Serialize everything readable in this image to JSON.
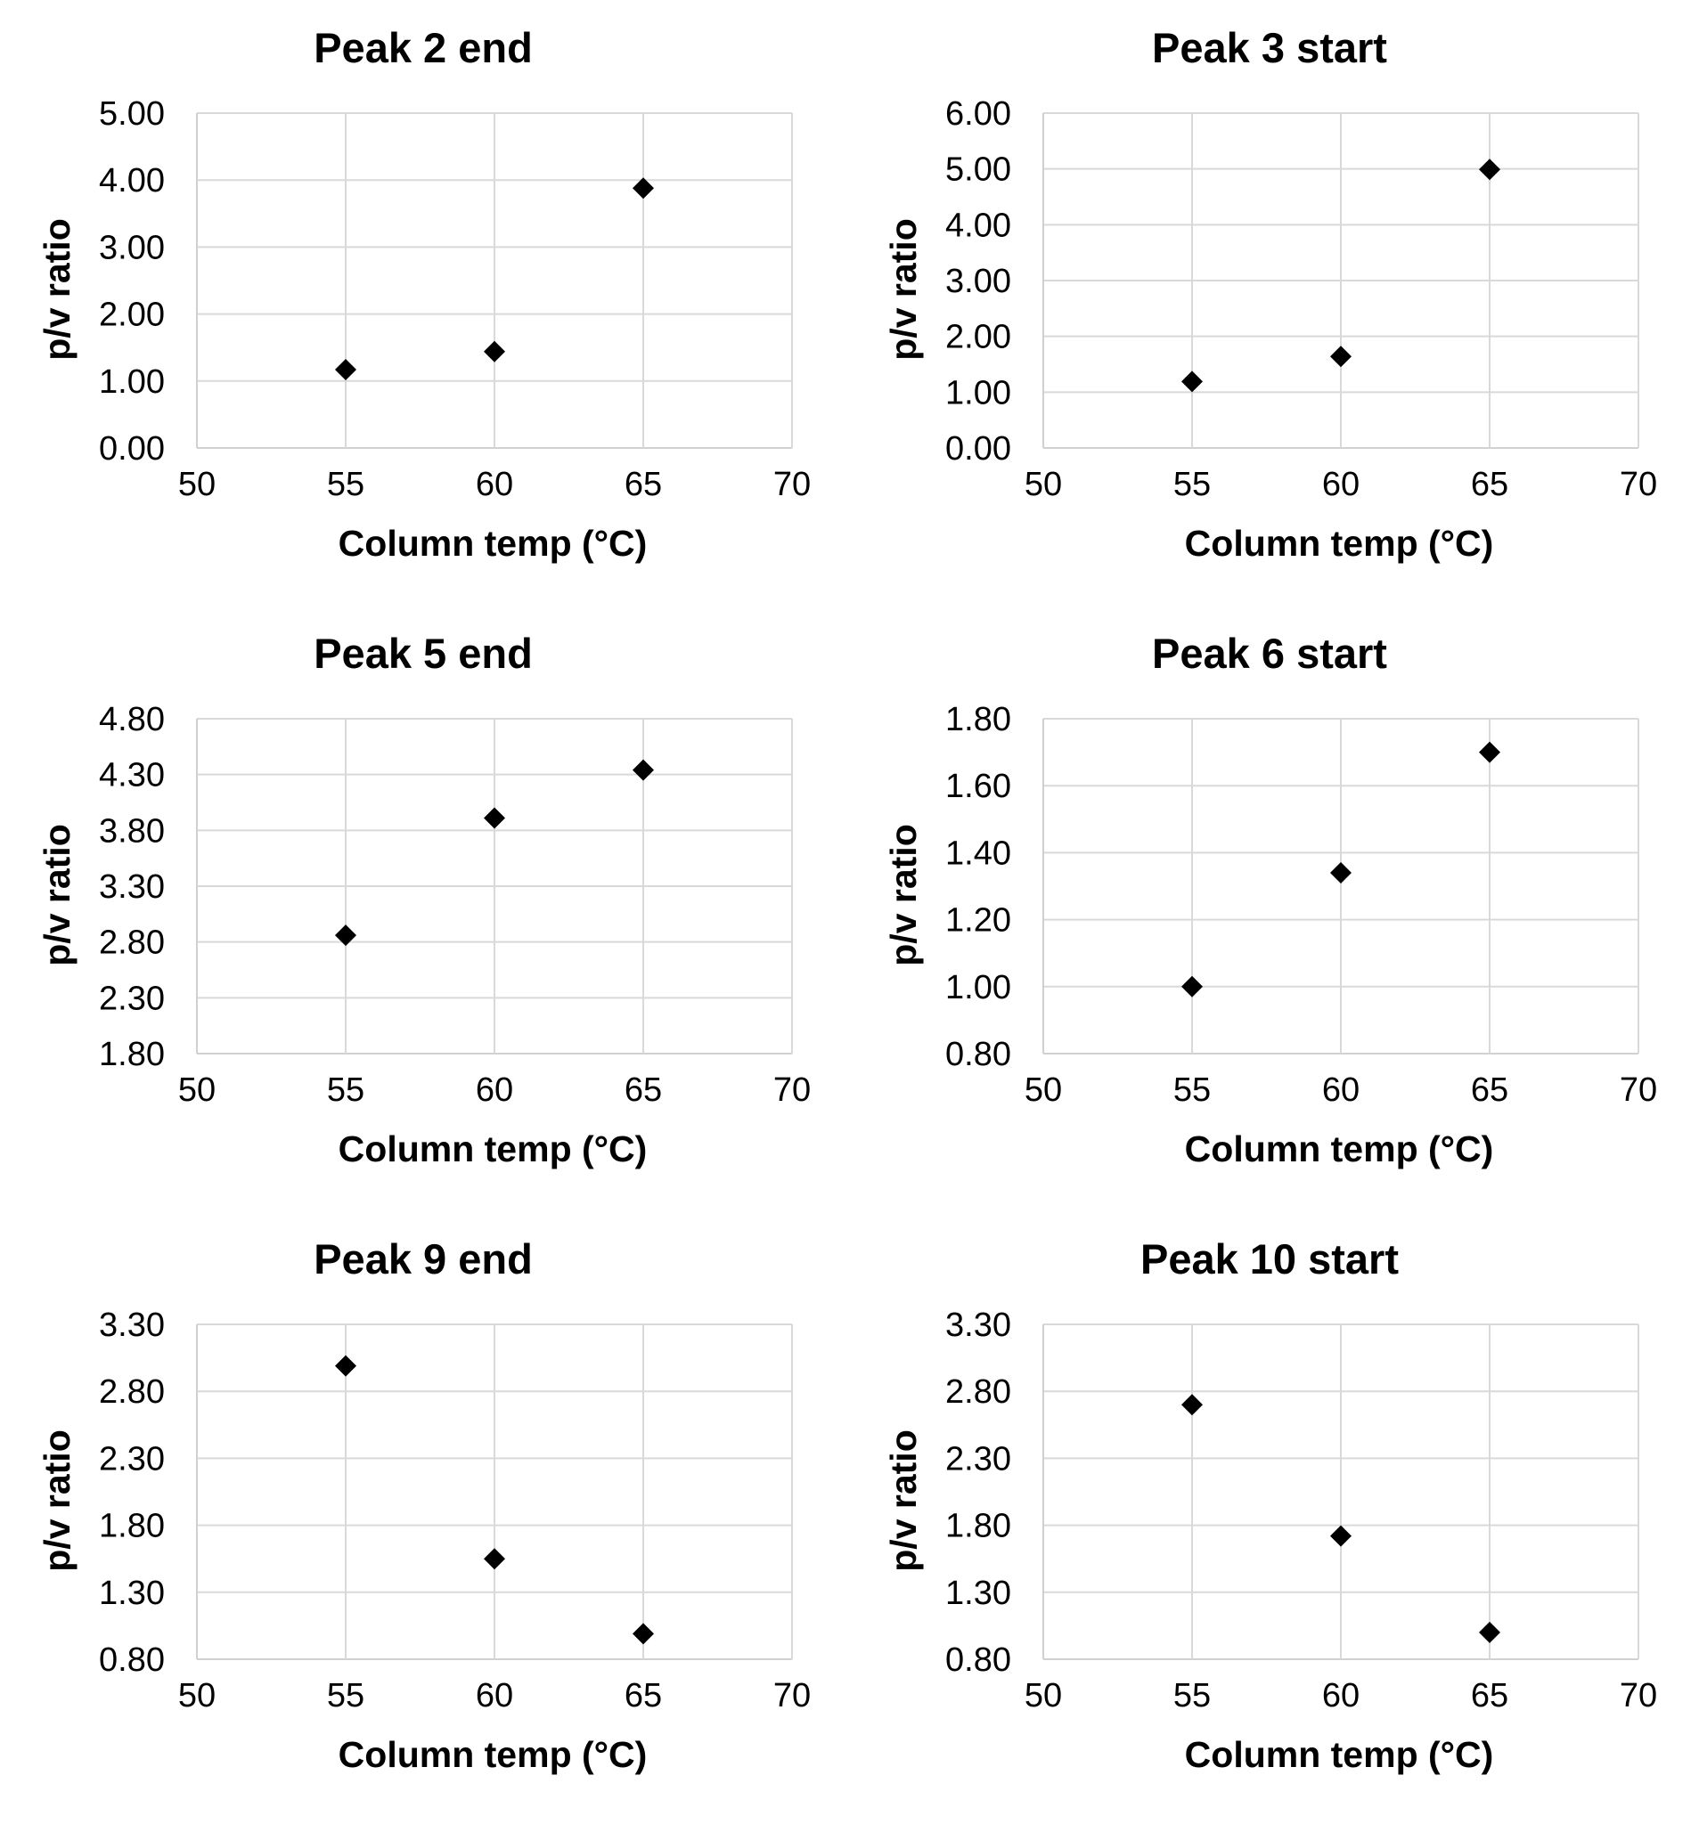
{
  "chart_data": [
    {
      "type": "scatter",
      "title": "Peak 2 end",
      "xlabel": "Column temp (°C)",
      "ylabel": "p/v ratio",
      "xlim": [
        50,
        70
      ],
      "ylim": [
        0,
        5
      ],
      "xticks": [
        "50",
        "55",
        "60",
        "65",
        "70"
      ],
      "yticks": [
        "0.00",
        "1.00",
        "2.00",
        "3.00",
        "4.00",
        "5.00"
      ],
      "grid": true,
      "marker": "diamond",
      "marker_color": "#000000",
      "series": [
        {
          "name": "p/v ratio",
          "x": [
            55,
            60,
            65
          ],
          "y": [
            1.17,
            1.44,
            3.88
          ]
        }
      ]
    },
    {
      "type": "scatter",
      "title": "Peak 3 start",
      "xlabel": "Column temp (°C)",
      "ylabel": "p/v ratio",
      "xlim": [
        50,
        70
      ],
      "ylim": [
        0,
        6
      ],
      "xticks": [
        "50",
        "55",
        "60",
        "65",
        "70"
      ],
      "yticks": [
        "0.00",
        "1.00",
        "2.00",
        "3.00",
        "4.00",
        "5.00",
        "6.00"
      ],
      "grid": true,
      "marker": "diamond",
      "marker_color": "#000000",
      "series": [
        {
          "name": "p/v ratio",
          "x": [
            55,
            60,
            65
          ],
          "y": [
            1.19,
            1.64,
            4.99
          ]
        }
      ]
    },
    {
      "type": "scatter",
      "title": "Peak 5 end",
      "xlabel": "Column temp (°C)",
      "ylabel": "p/v ratio",
      "xlim": [
        50,
        70
      ],
      "ylim": [
        1.8,
        4.8
      ],
      "xticks": [
        "50",
        "55",
        "60",
        "65",
        "70"
      ],
      "yticks": [
        "1.80",
        "2.30",
        "2.80",
        "3.30",
        "3.80",
        "4.30",
        "4.80"
      ],
      "grid": true,
      "marker": "diamond",
      "marker_color": "#000000",
      "series": [
        {
          "name": "p/v ratio",
          "x": [
            55,
            60,
            65
          ],
          "y": [
            2.86,
            3.91,
            4.34
          ]
        }
      ]
    },
    {
      "type": "scatter",
      "title": "Peak 6 start",
      "xlabel": "Column temp (°C)",
      "ylabel": "p/v ratio",
      "xlim": [
        50,
        70
      ],
      "ylim": [
        0.8,
        1.8
      ],
      "xticks": [
        "50",
        "55",
        "60",
        "65",
        "70"
      ],
      "yticks": [
        "0.80",
        "1.00",
        "1.20",
        "1.40",
        "1.60",
        "1.80"
      ],
      "grid": true,
      "marker": "diamond",
      "marker_color": "#000000",
      "series": [
        {
          "name": "p/v ratio",
          "x": [
            55,
            60,
            65
          ],
          "y": [
            1.0,
            1.34,
            1.7
          ]
        }
      ]
    },
    {
      "type": "scatter",
      "title": "Peak 9 end",
      "xlabel": "Column temp (°C)",
      "ylabel": "p/v ratio",
      "xlim": [
        50,
        70
      ],
      "ylim": [
        0.8,
        3.3
      ],
      "xticks": [
        "50",
        "55",
        "60",
        "65",
        "70"
      ],
      "yticks": [
        "0.80",
        "1.30",
        "1.80",
        "2.30",
        "2.80",
        "3.30"
      ],
      "grid": true,
      "marker": "diamond",
      "marker_color": "#000000",
      "series": [
        {
          "name": "p/v ratio",
          "x": [
            55,
            60,
            65
          ],
          "y": [
            2.99,
            1.55,
            0.99
          ]
        }
      ]
    },
    {
      "type": "scatter",
      "title": "Peak 10 start",
      "xlabel": "Column temp (°C)",
      "ylabel": "p/v ratio",
      "xlim": [
        50,
        70
      ],
      "ylim": [
        0.8,
        3.3
      ],
      "xticks": [
        "50",
        "55",
        "60",
        "65",
        "70"
      ],
      "yticks": [
        "0.80",
        "1.30",
        "1.80",
        "2.30",
        "2.80",
        "3.30"
      ],
      "grid": true,
      "marker": "diamond",
      "marker_color": "#000000",
      "series": [
        {
          "name": "p/v ratio",
          "x": [
            55,
            60,
            65
          ],
          "y": [
            2.7,
            1.72,
            1.0
          ]
        }
      ]
    }
  ]
}
